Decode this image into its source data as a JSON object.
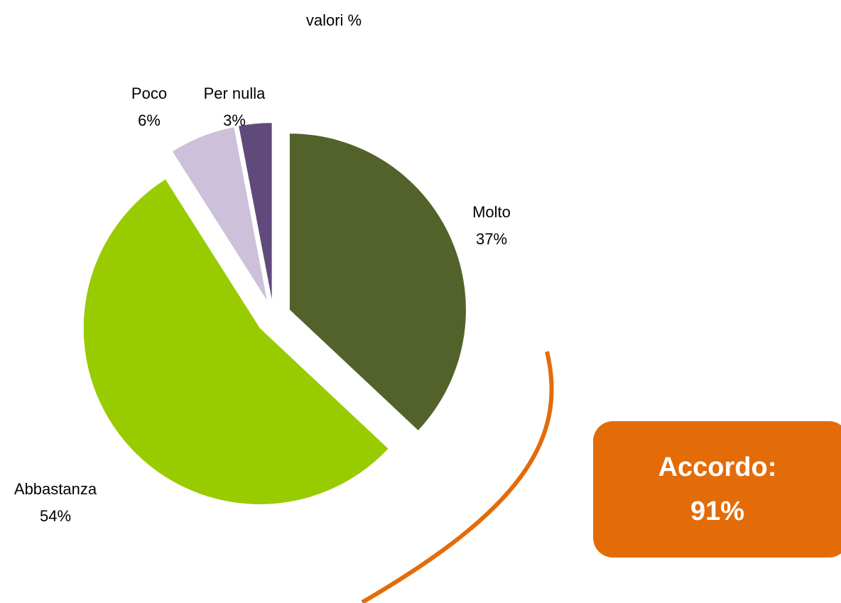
{
  "chart_data": {
    "type": "pie",
    "title": "valori %",
    "categories": [
      "Molto",
      "Abbastanza",
      "Poco",
      "Per nulla"
    ],
    "values": [
      37,
      54,
      6,
      3
    ],
    "value_labels": [
      "37%",
      "54%",
      "6%",
      "3%"
    ],
    "colors": [
      "#52622a",
      "#99cc00",
      "#ccc0da",
      "#604a7b"
    ],
    "exploded": true,
    "annotation": [
      "Accordo:",
      "91%"
    ]
  }
}
